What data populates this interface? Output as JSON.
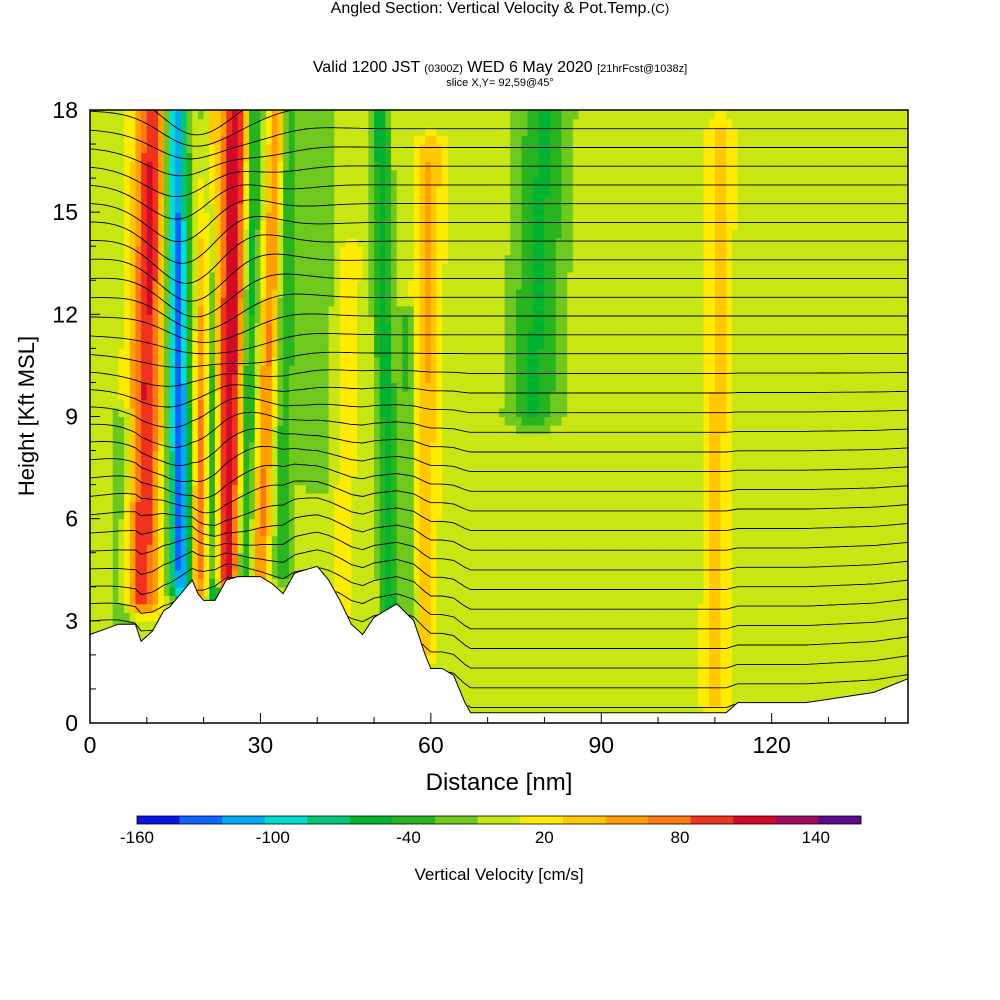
{
  "title": {
    "main": "Angled Section: Vertical Velocity & Pot.Temp.",
    "copyright": "(C)",
    "valid_prefix": "Valid 1200 JST",
    "valid_utc": "(0300Z)",
    "valid_date": "WED 6 May 2020",
    "forecast": "[21hrFcst@1038z]",
    "slice": "slice X,Y= 92,59@45°"
  },
  "chart_data": {
    "type": "heatmap",
    "title": "Angled Section: Vertical Velocity & Pot.Temp.",
    "xlabel": "Distance [nm]",
    "ylabel": "Height [Kft MSL]",
    "xlim": [
      0,
      144
    ],
    "ylim": [
      0,
      18
    ],
    "x_ticks": [
      "0",
      "30",
      "60",
      "90",
      "120"
    ],
    "y_ticks": [
      "0",
      "3",
      "6",
      "9",
      "12",
      "15",
      "18"
    ],
    "colorbar": {
      "label": "Vertical Velocity [cm/s]",
      "tick_labels": [
        "-160",
        "-100",
        "-40",
        "20",
        "80",
        "140"
      ],
      "levels": [
        -160,
        -140,
        -120,
        -100,
        -80,
        -60,
        -40,
        -20,
        0,
        20,
        40,
        60,
        80,
        100,
        120,
        140,
        160
      ],
      "colors": [
        "#0a14e6",
        "#0a64ff",
        "#00aaf0",
        "#00dcd2",
        "#00c878",
        "#00b432",
        "#28b41e",
        "#6ec81e",
        "#c8e614",
        "#ffeb00",
        "#ffc800",
        "#ffa000",
        "#ff7814",
        "#f0321e",
        "#d20a28",
        "#a00a5a",
        "#5a0a8c"
      ]
    },
    "terrain_height": [
      [
        0,
        2.6
      ],
      [
        5,
        2.9
      ],
      [
        8,
        2.9
      ],
      [
        9,
        2.4
      ],
      [
        11,
        2.7
      ],
      [
        13,
        3.3
      ],
      [
        14,
        3.4
      ],
      [
        15,
        3.6
      ],
      [
        17,
        4.0
      ],
      [
        18,
        4.2
      ],
      [
        19,
        3.8
      ],
      [
        20,
        3.6
      ],
      [
        22,
        3.6
      ],
      [
        24,
        4.2
      ],
      [
        26,
        4.3
      ],
      [
        30,
        4.3
      ],
      [
        32,
        4.1
      ],
      [
        34,
        3.8
      ],
      [
        36,
        4.4
      ],
      [
        40,
        4.6
      ],
      [
        42,
        4.2
      ],
      [
        44,
        3.6
      ],
      [
        46,
        2.9
      ],
      [
        48,
        2.6
      ],
      [
        50,
        3.1
      ],
      [
        52,
        3.3
      ],
      [
        54,
        3.5
      ],
      [
        57,
        3.0
      ],
      [
        59,
        2.0
      ],
      [
        60,
        1.6
      ],
      [
        62,
        1.6
      ],
      [
        64,
        1.4
      ],
      [
        65,
        1.0
      ],
      [
        66,
        0.6
      ],
      [
        67,
        0.3
      ],
      [
        112,
        0.3
      ],
      [
        114,
        0.6
      ],
      [
        126,
        0.6
      ],
      [
        130,
        0.7
      ],
      [
        138,
        0.9
      ],
      [
        144,
        1.3
      ]
    ],
    "updraft_bands": [
      {
        "x": 9,
        "x_top": 11,
        "w": 2.8,
        "top": 18,
        "base": 3.6,
        "peak": 110
      },
      {
        "x": 24,
        "x_top": 25.5,
        "w": 2.4,
        "top": 18,
        "base": 4.3,
        "peak": 125
      },
      {
        "x": 19,
        "x_top": 21,
        "w": 1.4,
        "top": 18,
        "base": 3.8,
        "peak": 80
      },
      {
        "x": 30,
        "x_top": 33,
        "w": 1.4,
        "top": 18,
        "base": 4.3,
        "peak": 70
      },
      {
        "x": 58,
        "x_top": 60,
        "w": 2.2,
        "top": 17,
        "base": 2.0,
        "peak": 50
      },
      {
        "x": 110,
        "x_top": 111,
        "w": 2.2,
        "top": 17.5,
        "base": 0.6,
        "peak": 35
      },
      {
        "x": 44,
        "x_top": 46,
        "w": 1.6,
        "top": 14,
        "base": 2.6,
        "peak": 25
      }
    ],
    "downdraft_bands": [
      {
        "x": 16,
        "x_top": 15,
        "w": 2.0,
        "top": 18,
        "base": 4.0,
        "peak": -140
      },
      {
        "x": 22,
        "x_top": 20.5,
        "w": 1.2,
        "top": 18,
        "base": 3.6,
        "peak": -80
      },
      {
        "x": 27,
        "x_top": 29,
        "w": 1.3,
        "top": 18,
        "base": 4.3,
        "peak": -70
      },
      {
        "x": 34,
        "x_top": 35,
        "w": 1.6,
        "top": 18,
        "base": 4.4,
        "peak": -45
      },
      {
        "x": 53,
        "x_top": 51,
        "w": 1.8,
        "top": 18,
        "base": 2.6,
        "peak": -60
      },
      {
        "x": 57,
        "x_top": 56,
        "w": 1.4,
        "top": 12,
        "base": 2.6,
        "peak": -45
      },
      {
        "x": 78,
        "x_top": 80,
        "w": 4.5,
        "top": 18,
        "base": 9,
        "peak": -55
      },
      {
        "x": 6,
        "x_top": 6,
        "w": 2.5,
        "top": 9,
        "base": 2.6,
        "peak": -30
      },
      {
        "x": 40,
        "x_top": 40,
        "w": 3,
        "top": 18,
        "base": 7,
        "peak": -25
      }
    ],
    "theta_label": "Pot.Temp."
  }
}
